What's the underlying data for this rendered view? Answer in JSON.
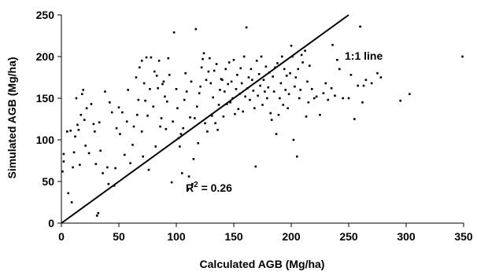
{
  "chart_data": {
    "type": "scatter",
    "title": "",
    "xlabel": "Calculated AGB (Mg/ha)",
    "ylabel": "Simulated AGB (Mg/ha)",
    "xlim": [
      0,
      350
    ],
    "ylim": [
      0,
      250
    ],
    "xticks": [
      "0",
      "50",
      "100",
      "150",
      "200",
      "250",
      "300",
      "350"
    ],
    "yticks": [
      "0",
      "50",
      "100",
      "150",
      "200",
      "250"
    ],
    "grid": false,
    "legend": "none",
    "colors": {
      "points": "#000000",
      "line": "#000000",
      "axes": "#000000"
    },
    "reference_line": {
      "label": "1:1 line",
      "slope": 1,
      "intercept": 0
    },
    "annotation": {
      "r2_prefix": "R",
      "r2_sup": "2",
      "r2_value": " = 0.26"
    },
    "points": [
      [
        1,
        62
      ],
      [
        2,
        74
      ],
      [
        2,
        83
      ],
      [
        5,
        110
      ],
      [
        6,
        36
      ],
      [
        8,
        111
      ],
      [
        9,
        25
      ],
      [
        10,
        67
      ],
      [
        11,
        85
      ],
      [
        12,
        104
      ],
      [
        13,
        150
      ],
      [
        14,
        118
      ],
      [
        15,
        112
      ],
      [
        16,
        70
      ],
      [
        17,
        130
      ],
      [
        18,
        155
      ],
      [
        19,
        160
      ],
      [
        20,
        124
      ],
      [
        21,
        93
      ],
      [
        22,
        138
      ],
      [
        24,
        84
      ],
      [
        26,
        143
      ],
      [
        28,
        119
      ],
      [
        29,
        110
      ],
      [
        30,
        71
      ],
      [
        31,
        9
      ],
      [
        32,
        12
      ],
      [
        33,
        121
      ],
      [
        34,
        87
      ],
      [
        36,
        60
      ],
      [
        38,
        158
      ],
      [
        40,
        67
      ],
      [
        41,
        47
      ],
      [
        42,
        145
      ],
      [
        44,
        133
      ],
      [
        46,
        45
      ],
      [
        47,
        66
      ],
      [
        48,
        114
      ],
      [
        50,
        139
      ],
      [
        51,
        107
      ],
      [
        53,
        133
      ],
      [
        55,
        82
      ],
      [
        57,
        122
      ],
      [
        58,
        160
      ],
      [
        60,
        72
      ],
      [
        62,
        94
      ],
      [
        63,
        116
      ],
      [
        65,
        175
      ],
      [
        66,
        130
      ],
      [
        67,
        148
      ],
      [
        68,
        187
      ],
      [
        70,
        195
      ],
      [
        70,
        110
      ],
      [
        71,
        80
      ],
      [
        72,
        168
      ],
      [
        73,
        147
      ],
      [
        74,
        199
      ],
      [
        75,
        129
      ],
      [
        76,
        64
      ],
      [
        77,
        161
      ],
      [
        78,
        199
      ],
      [
        80,
        140
      ],
      [
        81,
        182
      ],
      [
        82,
        92
      ],
      [
        83,
        177
      ],
      [
        84,
        162
      ],
      [
        85,
        195
      ],
      [
        86,
        116
      ],
      [
        87,
        126
      ],
      [
        88,
        167
      ],
      [
        89,
        170
      ],
      [
        90,
        152
      ],
      [
        91,
        113
      ],
      [
        92,
        146
      ],
      [
        93,
        198
      ],
      [
        94,
        178
      ],
      [
        96,
        49
      ],
      [
        97,
        122
      ],
      [
        98,
        229
      ],
      [
        100,
        161
      ],
      [
        101,
        138
      ],
      [
        102,
        102
      ],
      [
        103,
        92
      ],
      [
        104,
        107
      ],
      [
        105,
        60
      ],
      [
        106,
        114
      ],
      [
        107,
        148
      ],
      [
        108,
        180
      ],
      [
        109,
        158
      ],
      [
        110,
        40
      ],
      [
        111,
        56
      ],
      [
        112,
        127
      ],
      [
        113,
        170
      ],
      [
        114,
        47
      ],
      [
        115,
        77
      ],
      [
        116,
        126
      ],
      [
        117,
        233
      ],
      [
        118,
        140
      ],
      [
        119,
        96
      ],
      [
        120,
        156
      ],
      [
        121,
        164
      ],
      [
        122,
        187
      ],
      [
        123,
        197
      ],
      [
        124,
        204
      ],
      [
        125,
        120
      ],
      [
        126,
        172
      ],
      [
        127,
        110
      ],
      [
        128,
        182
      ],
      [
        129,
        198
      ],
      [
        130,
        168
      ],
      [
        131,
        129
      ],
      [
        132,
        151
      ],
      [
        133,
        183
      ],
      [
        134,
        120
      ],
      [
        135,
        191
      ],
      [
        136,
        112
      ],
      [
        137,
        142
      ],
      [
        138,
        160
      ],
      [
        139,
        173
      ],
      [
        140,
        172
      ],
      [
        141,
        128
      ],
      [
        142,
        158
      ],
      [
        143,
        185
      ],
      [
        144,
        143
      ],
      [
        145,
        167
      ],
      [
        146,
        193
      ],
      [
        147,
        145
      ],
      [
        148,
        170
      ],
      [
        149,
        150
      ],
      [
        150,
        196
      ],
      [
        151,
        131
      ],
      [
        152,
        161
      ],
      [
        153,
        178
      ],
      [
        154,
        137
      ],
      [
        155,
        155
      ],
      [
        156,
        186
      ],
      [
        157,
        168
      ],
      [
        158,
        134
      ],
      [
        159,
        200
      ],
      [
        160,
        152
      ],
      [
        161,
        235
      ],
      [
        162,
        162
      ],
      [
        163,
        175
      ],
      [
        164,
        148
      ],
      [
        165,
        185
      ],
      [
        166,
        172
      ],
      [
        167,
        159
      ],
      [
        168,
        138
      ],
      [
        169,
        68
      ],
      [
        170,
        195
      ],
      [
        171,
        153
      ],
      [
        172,
        179
      ],
      [
        173,
        165
      ],
      [
        174,
        200
      ],
      [
        175,
        142
      ],
      [
        176,
        172
      ],
      [
        177,
        158
      ],
      [
        178,
        188
      ],
      [
        179,
        150
      ],
      [
        180,
        163
      ],
      [
        181,
        181
      ],
      [
        182,
        132
      ],
      [
        183,
        124
      ],
      [
        184,
        176
      ],
      [
        185,
        158
      ],
      [
        186,
        187
      ],
      [
        187,
        107
      ],
      [
        188,
        192
      ],
      [
        189,
        130
      ],
      [
        190,
        150
      ],
      [
        191,
        168
      ],
      [
        192,
        200
      ],
      [
        193,
        142
      ],
      [
        194,
        185
      ],
      [
        195,
        160
      ],
      [
        196,
        177
      ],
      [
        197,
        138
      ],
      [
        198,
        155
      ],
      [
        199,
        180
      ],
      [
        200,
        213
      ],
      [
        201,
        200
      ],
      [
        202,
        100
      ],
      [
        203,
        164
      ],
      [
        204,
        175
      ],
      [
        205,
        80
      ],
      [
        206,
        185
      ],
      [
        207,
        150
      ],
      [
        208,
        160
      ],
      [
        209,
        202
      ],
      [
        210,
        193
      ],
      [
        212,
        207
      ],
      [
        213,
        128
      ],
      [
        214,
        170
      ],
      [
        215,
        145
      ],
      [
        216,
        189
      ],
      [
        218,
        161
      ],
      [
        220,
        150
      ],
      [
        222,
        152
      ],
      [
        225,
        130
      ],
      [
        228,
        156
      ],
      [
        230,
        168
      ],
      [
        232,
        148
      ],
      [
        235,
        162
      ],
      [
        236,
        214
      ],
      [
        238,
        153
      ],
      [
        240,
        196
      ],
      [
        242,
        185
      ],
      [
        245,
        150
      ],
      [
        250,
        150
      ],
      [
        252,
        178
      ],
      [
        255,
        125
      ],
      [
        258,
        165
      ],
      [
        260,
        236
      ],
      [
        262,
        145
      ],
      [
        263,
        165
      ],
      [
        265,
        172
      ],
      [
        270,
        168
      ],
      [
        275,
        180
      ],
      [
        278,
        175
      ],
      [
        295,
        147
      ],
      [
        303,
        155
      ],
      [
        349,
        200
      ]
    ]
  }
}
